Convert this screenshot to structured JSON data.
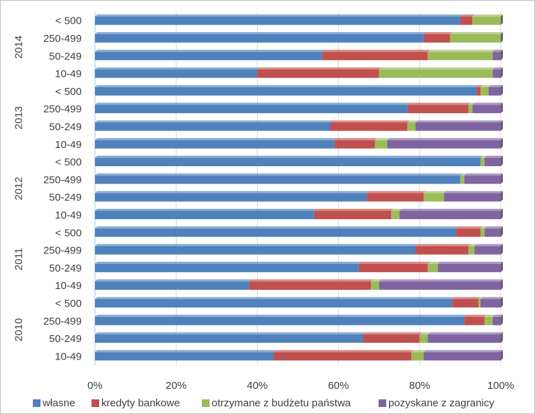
{
  "chart_data": {
    "type": "bar",
    "orientation": "horizontal",
    "stacked": "percent",
    "groups": [
      "2014",
      "2013",
      "2012",
      "2011",
      "2010"
    ],
    "categories": [
      "< 500",
      "250-499",
      "50-249",
      "10-49"
    ],
    "series": [
      {
        "name": "własne",
        "color": "#4f81bd",
        "values": {
          "2014": [
            90,
            81,
            56,
            40
          ],
          "2013": [
            94,
            77,
            58,
            59
          ],
          "2012": [
            95,
            90,
            67,
            54
          ],
          "2011": [
            89,
            79,
            65,
            38
          ],
          "2010": [
            88,
            91,
            66,
            44
          ]
        }
      },
      {
        "name": "kredyty bankowe",
        "color": "#c0504d",
        "values": {
          "2014": [
            3,
            6.5,
            26,
            30
          ],
          "2013": [
            1,
            15,
            19,
            10
          ],
          "2012": [
            0,
            0,
            14,
            19
          ],
          "2011": [
            6,
            13,
            17,
            30
          ],
          "2010": [
            6.5,
            5,
            14,
            34
          ]
        }
      },
      {
        "name": "otrzymane z budżetu państwa",
        "color": "#9bbb59",
        "values": {
          "2014": [
            7,
            12.5,
            16,
            28
          ],
          "2013": [
            2,
            1,
            2,
            3
          ],
          "2012": [
            1,
            1,
            5,
            2
          ],
          "2011": [
            1,
            1.5,
            2.5,
            2
          ],
          "2010": [
            0.5,
            2,
            2,
            3
          ]
        }
      },
      {
        "name": "pozyskane z zagranicy",
        "color": "#8064a2",
        "values": {
          "2014": [
            0,
            0,
            2,
            2
          ],
          "2013": [
            3,
            7,
            21,
            28
          ],
          "2012": [
            4,
            9,
            14,
            25
          ],
          "2011": [
            4,
            6.5,
            15.5,
            30
          ],
          "2010": [
            5,
            2,
            18,
            19
          ]
        }
      }
    ],
    "x_ticks": [
      "0%",
      "20%",
      "40%",
      "60%",
      "80%",
      "100%"
    ],
    "xlim": [
      0,
      100
    ],
    "grid": true,
    "legend": "bottom"
  }
}
